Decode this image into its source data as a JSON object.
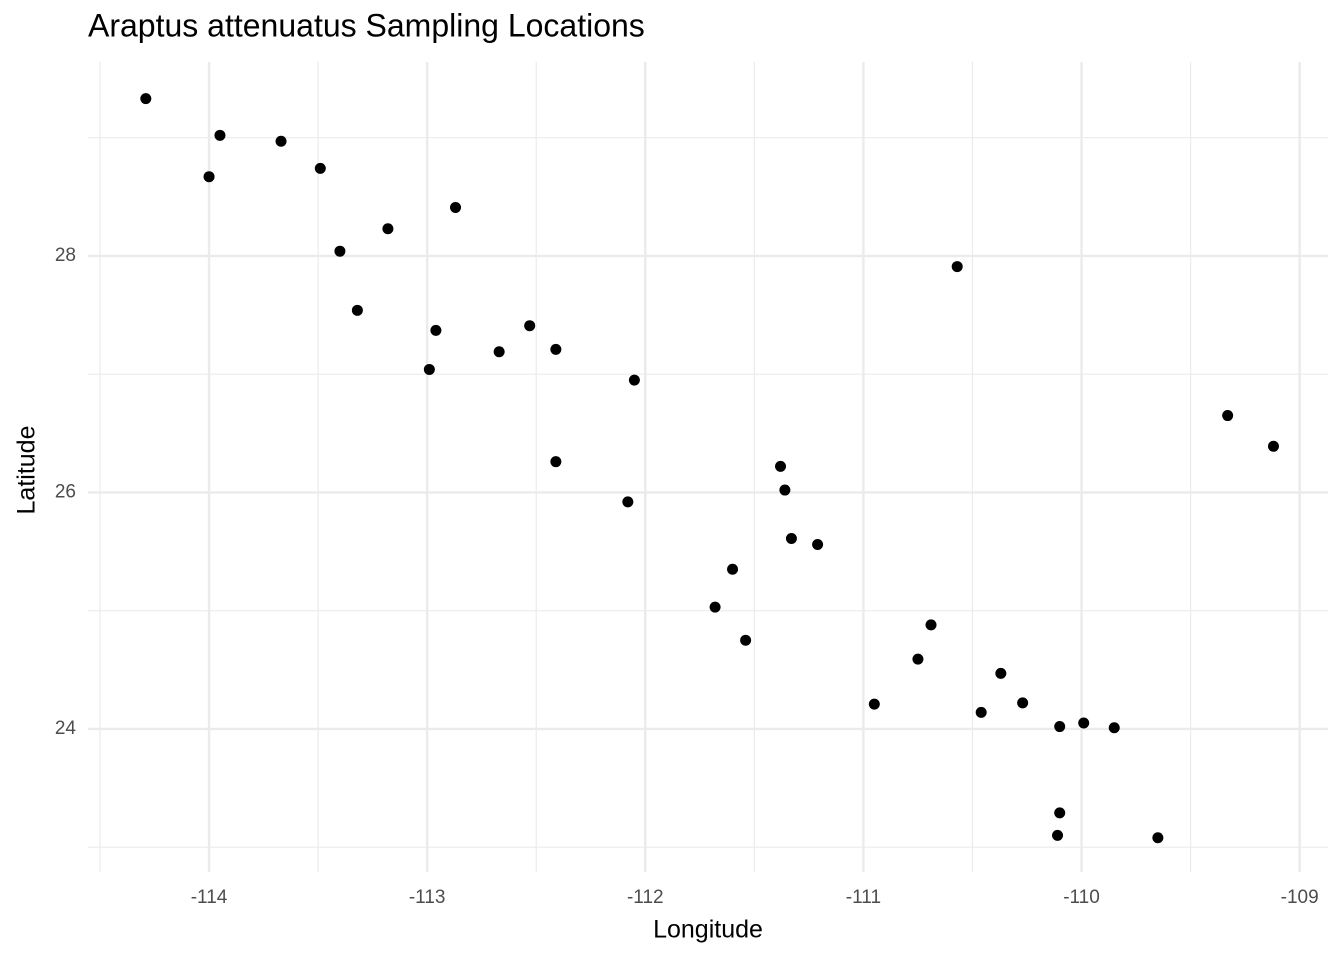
{
  "chart_data": {
    "type": "scatter",
    "title": "Araptus attenuatus Sampling Locations",
    "x_label": "Longitude",
    "y_label": "Latitude",
    "x": [
      -114.29,
      -113.95,
      -113.67,
      -114.0,
      -113.49,
      -112.87,
      -113.18,
      -113.4,
      -110.57,
      -113.32,
      -112.96,
      -112.53,
      -112.67,
      -112.41,
      -112.99,
      -112.05,
      -109.33,
      -109.12,
      -112.41,
      -111.38,
      -111.36,
      -112.08,
      -111.33,
      -111.21,
      -111.6,
      -111.68,
      -110.69,
      -111.54,
      -110.75,
      -110.37,
      -110.95,
      -110.27,
      -110.46,
      -110.1,
      -109.99,
      -109.85,
      -110.1,
      -110.11,
      -109.65
    ],
    "series": [
      {
        "color": "#000000",
        "values": [
          29.33,
          29.02,
          28.97,
          28.67,
          28.74,
          28.41,
          28.23,
          28.04,
          27.91,
          27.54,
          27.37,
          27.41,
          27.19,
          27.21,
          27.04,
          26.95,
          26.65,
          26.39,
          26.26,
          26.22,
          26.02,
          25.92,
          25.61,
          25.56,
          25.35,
          25.03,
          24.88,
          24.75,
          24.59,
          24.47,
          24.21,
          24.22,
          24.14,
          24.02,
          24.05,
          24.01,
          23.29,
          23.1,
          23.08
        ]
      }
    ],
    "xlim": [
      -114.555,
      -108.87
    ],
    "ylim": [
      22.79,
      29.64
    ],
    "xticks": [
      -114,
      -113,
      -112,
      -111,
      -110,
      -109
    ],
    "yticks": [
      24,
      26,
      28
    ],
    "xminor": [
      -114.5,
      -113.5,
      -112.5,
      -111.5,
      -110.5,
      -109.5
    ],
    "yminor": [
      23,
      25,
      27,
      29
    ],
    "grid": true
  }
}
